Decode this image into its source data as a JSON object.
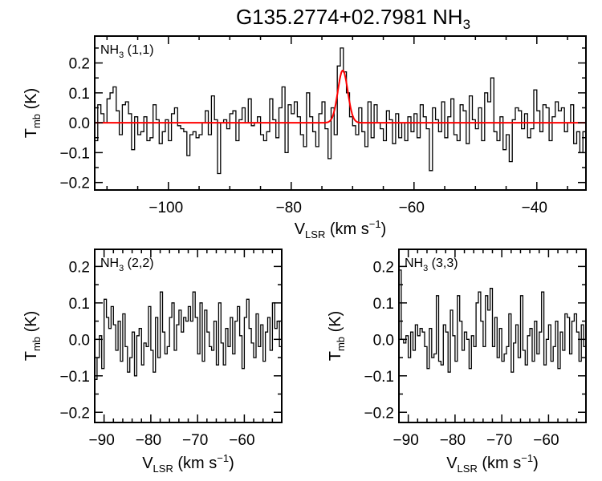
{
  "title": {
    "main": "G135.2774+02.7981 NH",
    "sub": "3"
  },
  "colors": {
    "spectrum": "#000000",
    "fit": "#ff0000"
  },
  "chart_data": [
    {
      "type": "line",
      "style": "step",
      "panel_label": {
        "main": "NH",
        "sub": "3",
        "rest": " (1,1)"
      },
      "xlabel": {
        "main": "V",
        "sub": "LSR",
        "rest": " (km s",
        "sup": "−1",
        "end": ")"
      },
      "ylabel": {
        "main": "T",
        "sub": "mb",
        "rest": " (K)"
      },
      "xlim": [
        -112,
        -32
      ],
      "ylim": [
        -0.225,
        0.29
      ],
      "xticks": [
        -100,
        -80,
        -60,
        -40
      ],
      "xtick_labels": [
        "−100",
        "−80",
        "−60",
        "−40"
      ],
      "yticks": [
        -0.2,
        -0.1,
        0.0,
        0.1,
        0.2
      ],
      "ytick_labels": [
        "−0.2",
        "−0.1",
        "0.0",
        "0.1",
        "0.2"
      ],
      "x_start": -111.75,
      "channel_width": 0.5,
      "values": [
        -0.06,
        0.06,
        0.03,
        0.0,
        0.08,
        0.1,
        0.12,
        0.04,
        -0.04,
        0.06,
        0.07,
        0.03,
        -0.09,
        0.02,
        -0.04,
        -0.03,
        0.02,
        -0.06,
        -0.05,
        0.06,
        0.01,
        -0.07,
        -0.03,
        0.01,
        -0.06,
        0.03,
        0.05,
        -0.01,
        -0.02,
        -0.03,
        -0.11,
        -0.04,
        -0.03,
        -0.05,
        -0.04,
        0.0,
        0.04,
        -0.04,
        0.09,
        0.01,
        -0.17,
        0.0,
        0.01,
        -0.02,
        0.03,
        0.04,
        -0.06,
        0.01,
        0.05,
        0.0,
        0.08,
        -0.01,
        0.0,
        0.02,
        -0.04,
        -0.06,
        -0.03,
        0.08,
        0.01,
        -0.05,
        0.05,
        0.12,
        -0.1,
        0.06,
        0.03,
        0.07,
        0.02,
        -0.04,
        -0.08,
        0.1,
        0.02,
        -0.03,
        -0.08,
        0.03,
        0.07,
        -0.02,
        -0.12,
        0.05,
        -0.04,
        0.19,
        0.25,
        0.17,
        0.1,
        0.02,
        -0.01,
        -0.04,
        0.05,
        -0.03,
        -0.08,
        0.07,
        -0.05,
        0.06,
        0.0,
        -0.02,
        -0.06,
        0.04,
        0.01,
        -0.07,
        0.03,
        -0.05,
        0.0,
        -0.06,
        0.02,
        -0.03,
        0.03,
        -0.05,
        0.06,
        0.02,
        -0.02,
        -0.16,
        0.05,
        0.01,
        -0.03,
        0.07,
        -0.05,
        0.02,
        0.08,
        -0.04,
        -0.06,
        0.06,
        0.04,
        -0.07,
        0.09,
        0.01,
        -0.02,
        0.05,
        -0.06,
        0.1,
        0.07,
        0.15,
        -0.03,
        -0.06,
        0.02,
        -0.09,
        -0.04,
        -0.13,
        0.01,
        0.05,
        0.04,
        -0.02,
        0.03,
        -0.05,
        -0.02,
        0.11,
        0.04,
        -0.03,
        0.06,
        0.05,
        -0.06,
        0.02,
        0.07,
        0.04,
        0.05,
        -0.03,
        0.0,
        0.06,
        -0.07,
        -0.03,
        -0.1,
        -0.03
      ],
      "fit": {
        "type": "gaussian",
        "amplitude": 0.175,
        "center": -71.6,
        "fwhm": 1.9
      }
    },
    {
      "type": "line",
      "style": "step",
      "panel_label": {
        "main": "NH",
        "sub": "3",
        "rest": " (2,2)"
      },
      "xlabel": {
        "main": "V",
        "sub": "LSR",
        "rest": " (km s",
        "sup": "−1",
        "end": ")"
      },
      "ylabel": {
        "main": "T",
        "sub": "mb",
        "rest": " (K)"
      },
      "xlim": [
        -92,
        -52
      ],
      "ylim": [
        -0.228,
        0.247
      ],
      "xticks": [
        -90,
        -80,
        -70,
        -60
      ],
      "xtick_labels": [
        "−90",
        "−80",
        "−70",
        "−60"
      ],
      "yticks": [
        -0.2,
        -0.1,
        0.0,
        0.1,
        0.2
      ],
      "ytick_labels": [
        "−0.2",
        "−0.1",
        "0.0",
        "0.1",
        "0.2"
      ],
      "x_start": -91.75,
      "channel_width": 0.5,
      "values": [
        -0.11,
        -0.05,
        0.01,
        -0.08,
        0.11,
        0.06,
        0.03,
        0.09,
        0.04,
        -0.03,
        0.05,
        -0.06,
        0.07,
        -0.02,
        -0.09,
        -0.05,
        0.02,
        -0.1,
        0.01,
        0.03,
        -0.07,
        -0.01,
        -0.02,
        0.09,
        -0.03,
        -0.09,
        0.06,
        -0.05,
        0.13,
        0.02,
        -0.04,
        -0.02,
        0.06,
        0.1,
        -0.03,
        0.04,
        0.08,
        0.02,
        0.06,
        0.05,
        0.09,
        0.05,
        0.13,
        0.06,
        -0.04,
        0.1,
        -0.06,
        0.08,
        0.02,
        -0.02,
        -0.03,
        0.05,
        -0.07,
        0.1,
        -0.01,
        -0.07,
        0.03,
        -0.02,
        0.06,
        -0.04,
        0.05,
        0.09,
        0.01,
        -0.08,
        0.06,
        0.11,
        0.03,
        -0.01,
        -0.05,
        0.07,
        -0.02,
        0.04,
        -0.06,
        0.02,
        0.06,
        -0.03,
        0.1,
        0.03,
        0.05,
        -0.02
      ]
    },
    {
      "type": "line",
      "style": "step",
      "panel_label": {
        "main": "NH",
        "sub": "3",
        "rest": " (3,3)"
      },
      "xlabel": {
        "main": "V",
        "sub": "LSR",
        "rest": " (km s",
        "sup": "−1",
        "end": ")"
      },
      "ylabel": {
        "main": "T",
        "sub": "mb",
        "rest": " (K)"
      },
      "xlim": [
        -92,
        -52
      ],
      "ylim": [
        -0.228,
        0.247
      ],
      "xticks": [
        -90,
        -80,
        -70,
        -60
      ],
      "xtick_labels": [
        "−90",
        "−80",
        "−70",
        "−60"
      ],
      "yticks": [
        -0.2,
        -0.1,
        0.0,
        0.1,
        0.2
      ],
      "ytick_labels": [
        "−0.2",
        "−0.1",
        "0.0",
        "0.1",
        "0.2"
      ],
      "x_start": -91.75,
      "channel_width": 0.5,
      "values": [
        0.19,
        0.0,
        -0.01,
        0.01,
        -0.05,
        0.02,
        -0.03,
        0.04,
        0.01,
        0.03,
        0.02,
        -0.02,
        -0.08,
        0.03,
        -0.05,
        -0.04,
        0.12,
        -0.06,
        -0.07,
        0.04,
        0.02,
        -0.09,
        0.08,
        0.01,
        -0.06,
        0.12,
        0.05,
        -0.03,
        0.02,
        0.0,
        -0.08,
        0.01,
        -0.02,
        0.1,
        0.13,
        0.05,
        -0.02,
        0.12,
        0.08,
        0.14,
        -0.02,
        0.06,
        -0.05,
        0.03,
        -0.06,
        -0.04,
        -0.02,
        0.07,
        -0.09,
        -0.01,
        0.04,
        -0.05,
        0.12,
        -0.03,
        -0.07,
        0.01,
        0.03,
        -0.06,
        0.05,
        -0.04,
        0.02,
        0.13,
        -0.07,
        0.0,
        0.04,
        -0.06,
        -0.02,
        0.05,
        -0.08,
        0.02,
        -0.03,
        0.07,
        0.06,
        -0.04,
        0.05,
        0.07,
        0.02,
        -0.06,
        0.04,
        -0.02
      ]
    }
  ]
}
